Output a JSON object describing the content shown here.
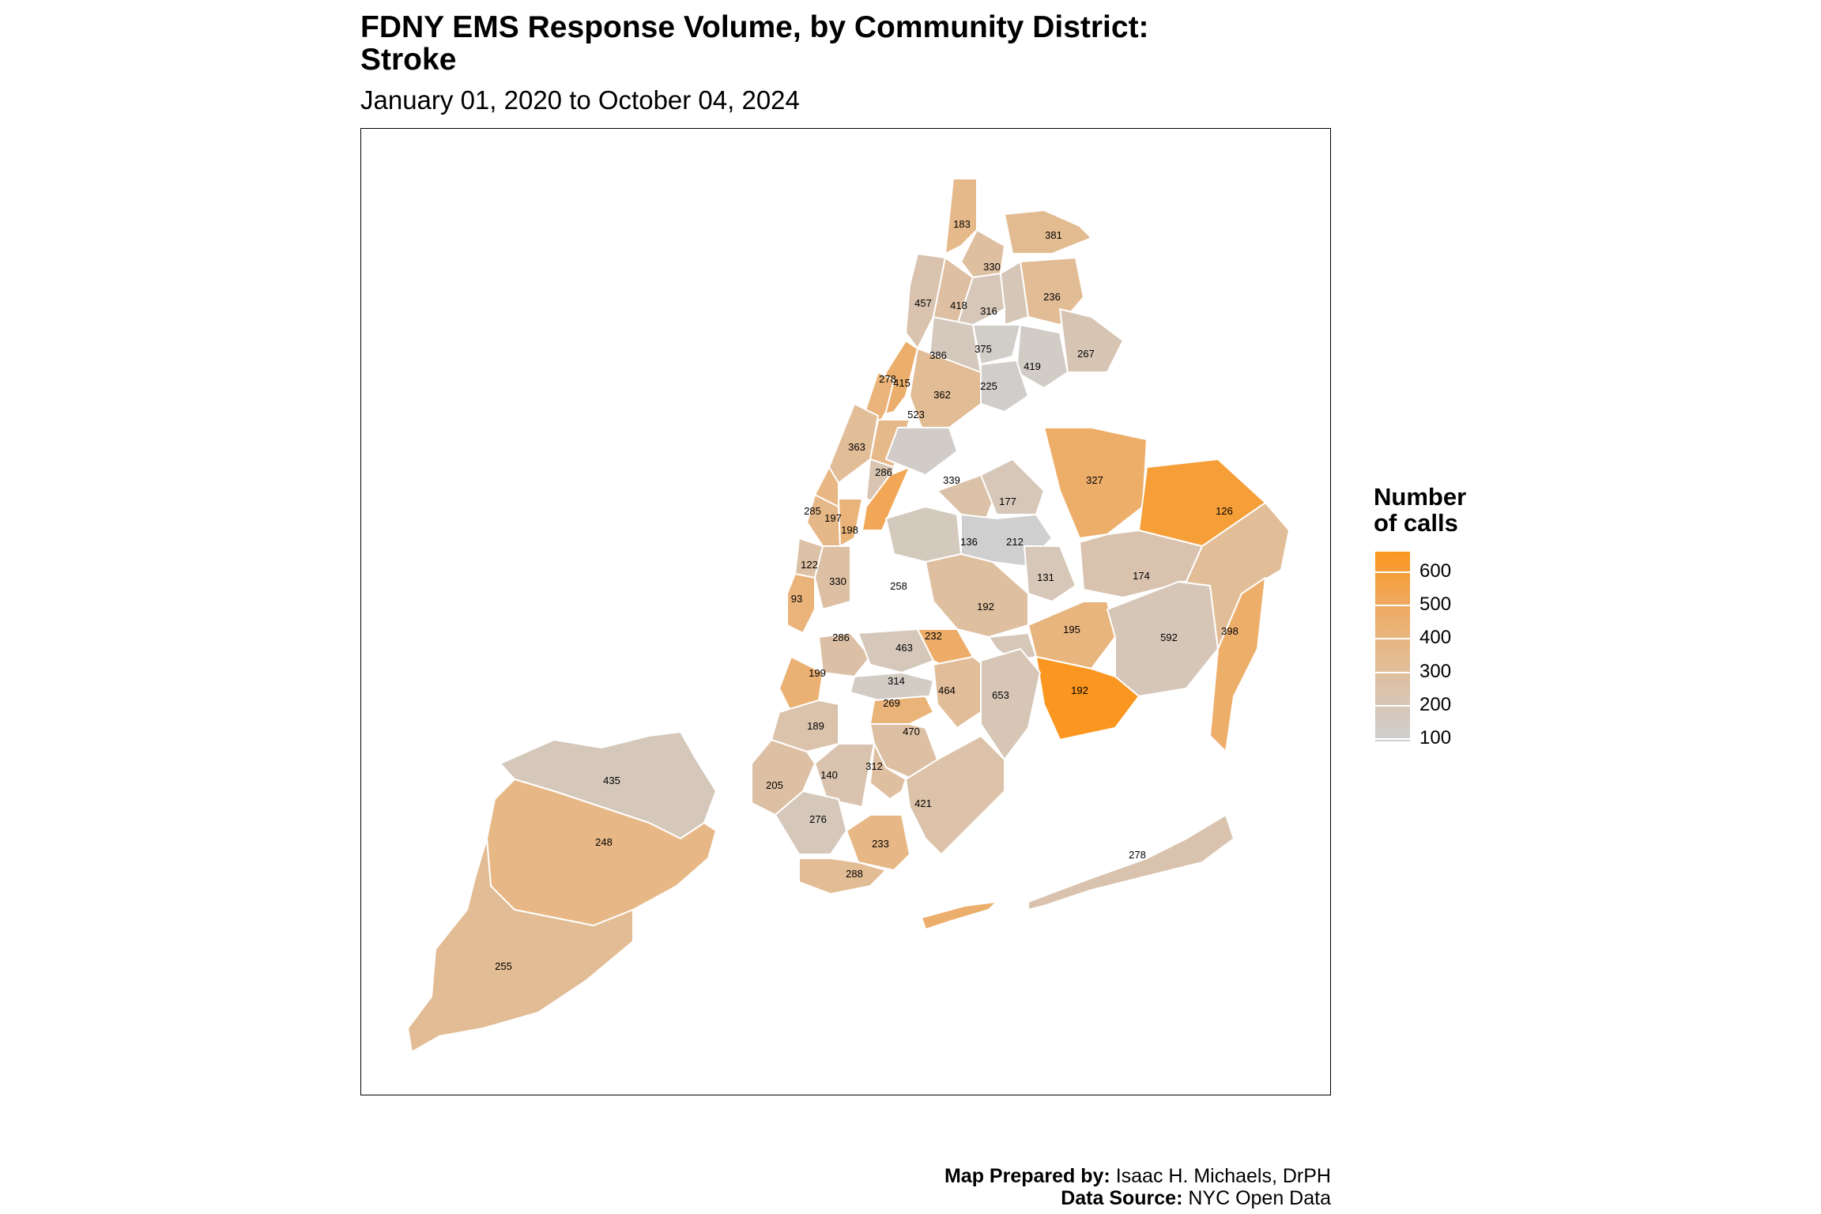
{
  "header": {
    "title_line1": "FDNY EMS Response Volume, by Community District:",
    "title_line2": "Stroke",
    "subtitle": "January 01, 2020 to October 04, 2024"
  },
  "legend": {
    "title_line1": "Number",
    "title_line2": "of calls",
    "ticks": [
      "600",
      "500",
      "400",
      "300",
      "200",
      "100"
    ],
    "scale_low_color": "#cfcfcf",
    "scale_high_color": "#fb9620"
  },
  "credits": {
    "prepared_label": "Map Prepared by:",
    "prepared_value": " Isaac H. Michaels, DrPH",
    "source_label": "Data Source:",
    "source_value": " NYC Open Data"
  },
  "chart_data": {
    "type": "choropleth",
    "value_range": [
      100,
      650
    ],
    "district_values": [
      183,
      381,
      330,
      236,
      457,
      418,
      316,
      386,
      375,
      419,
      267,
      278,
      415,
      362,
      225,
      523,
      363,
      286,
      339,
      327,
      285,
      197,
      198,
      177,
      126,
      136,
      212,
      122,
      330,
      131,
      174,
      258,
      192,
      93,
      195,
      286,
      463,
      232,
      592,
      398,
      199,
      314,
      464,
      653,
      192,
      269,
      189,
      470,
      435,
      140,
      312,
      205,
      421,
      248,
      276,
      233,
      288,
      278,
      255
    ]
  }
}
